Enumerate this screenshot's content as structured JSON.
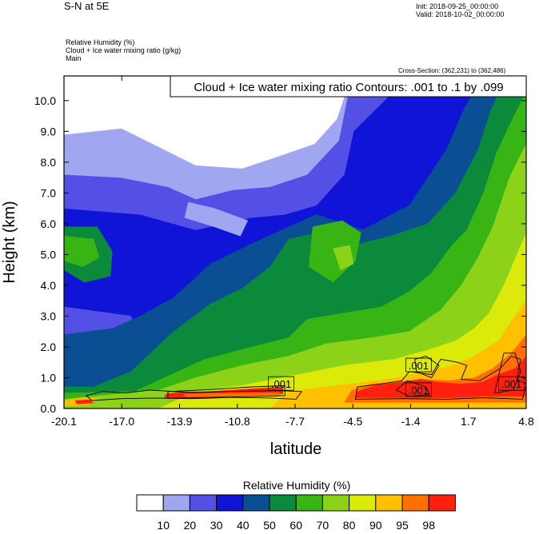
{
  "header": {
    "title": "S-N at 5E",
    "init": "Init: 2018-09-25_00:00:00",
    "valid": "Valid: 2018-10-02_00:00:00",
    "fields": [
      "Relative Humidity   (%)",
      "Cloud + Ice water mixing ratio   (g/kg)",
      "Main"
    ],
    "cross_section": "Cross-Section: (362,231) to (362,486)",
    "contour_info": "Cloud + Ice water mixing ratio Contours: .001 to .1 by .099"
  },
  "chart_data": {
    "type": "heatmap",
    "xlabel": "latitude",
    "ylabel": "Height (km)",
    "x_ticks": [
      "-20.1",
      "-17.0",
      "-13.9",
      "-10.8",
      "-7.7",
      "-4.5",
      "-1.4",
      "1.7",
      "4.8"
    ],
    "x_range": [
      -20.1,
      4.8
    ],
    "y_ticks": [
      "0.0",
      "1.0",
      "2.0",
      "3.0",
      "4.0",
      "5.0",
      "6.0",
      "7.0",
      "8.0",
      "9.0",
      "10.0"
    ],
    "y_range": [
      0,
      10.8
    ],
    "colorbar": {
      "title": "Relative Humidity  (%)",
      "labels": [
        "10",
        "20",
        "30",
        "40",
        "50",
        "60",
        "70",
        "80",
        "90",
        "95",
        "98"
      ],
      "colors": [
        "#ffffff",
        "#a0a6f0",
        "#5450e6",
        "#1014d6",
        "#0a4e94",
        "#0a8a3a",
        "#38b414",
        "#8cd218",
        "#dcea0a",
        "#ffc000",
        "#ff7000",
        "#ff2010"
      ]
    },
    "contour_labels": [
      {
        "text": ".001",
        "lat": -8.4,
        "h": 0.8
      },
      {
        "text": ".001",
        "lat": -1.0,
        "h": 1.4
      },
      {
        "text": ".001",
        "lat": -1.0,
        "h": 0.6
      },
      {
        "text": ".001",
        "lat": 4.0,
        "h": 0.8
      }
    ],
    "regions": [
      {
        "level": 3,
        "pts": [
          [
            -20.1,
            0
          ],
          [
            4.8,
            0
          ],
          [
            4.8,
            10.8
          ],
          [
            -20.1,
            10.8
          ]
        ]
      },
      {
        "level": 2,
        "pts": [
          [
            -20.1,
            6.5
          ],
          [
            -16,
            6.3
          ],
          [
            -13,
            5.8
          ],
          [
            -10,
            6.2
          ],
          [
            -8.2,
            6.3
          ],
          [
            -6.5,
            6.6
          ],
          [
            -5,
            7.6
          ],
          [
            -4.5,
            9
          ],
          [
            -2.5,
            10.2
          ],
          [
            -1,
            10.8
          ],
          [
            -20.1,
            10.8
          ]
        ]
      },
      {
        "level": 2,
        "pts": [
          [
            -20.1,
            2.4
          ],
          [
            -18,
            1.6
          ],
          [
            -16.5,
            1.3
          ],
          [
            -15.5,
            1.7
          ],
          [
            -16.5,
            3.0
          ],
          [
            -20.1,
            3.3
          ]
        ]
      },
      {
        "level": 1,
        "pts": [
          [
            -20.1,
            7.6
          ],
          [
            -17,
            7.5
          ],
          [
            -14.5,
            7.2
          ],
          [
            -13,
            6.8
          ],
          [
            -11,
            7.1
          ],
          [
            -9,
            7.2
          ],
          [
            -7,
            7.6
          ],
          [
            -5.3,
            8.7
          ],
          [
            -4.6,
            10.8
          ],
          [
            -20.1,
            10.8
          ]
        ]
      },
      {
        "level": 1,
        "pts": [
          [
            -13.6,
            6.2
          ],
          [
            -12,
            5.9
          ],
          [
            -10.6,
            5.6
          ],
          [
            -10.2,
            6.1
          ],
          [
            -12,
            6.5
          ],
          [
            -13.4,
            6.7
          ]
        ]
      },
      {
        "level": 0,
        "pts": [
          [
            -20.1,
            8.9
          ],
          [
            -17,
            9.1
          ],
          [
            -15,
            8.5
          ],
          [
            -13,
            7.9
          ],
          [
            -10.5,
            7.8
          ],
          [
            -8.5,
            8.2
          ],
          [
            -6.6,
            8.6
          ],
          [
            -5.4,
            9.4
          ],
          [
            -4.9,
            10.3
          ],
          [
            -5.6,
            10.8
          ],
          [
            -20.1,
            10.8
          ]
        ]
      },
      {
        "level": 4,
        "pts": [
          [
            -20.1,
            0
          ],
          [
            4.8,
            0
          ],
          [
            4.8,
            10.8
          ],
          [
            2.6,
            10.8
          ],
          [
            1.5,
            9.8
          ],
          [
            0.5,
            8.4
          ],
          [
            -1.5,
            6.6
          ],
          [
            -4,
            5.8
          ],
          [
            -6.5,
            6.3
          ],
          [
            -8,
            5.9
          ],
          [
            -10.5,
            5.2
          ],
          [
            -12.2,
            4.7
          ],
          [
            -14.2,
            3.6
          ],
          [
            -16,
            3.0
          ],
          [
            -17.5,
            2.6
          ],
          [
            -20.1,
            2.4
          ]
        ]
      },
      {
        "level": 5,
        "pts": [
          [
            -20.1,
            0
          ],
          [
            4.8,
            0
          ],
          [
            4.8,
            10.8
          ],
          [
            3.8,
            10.8
          ],
          [
            2.9,
            9.7
          ],
          [
            2.2,
            8.4
          ],
          [
            1.0,
            7.0
          ],
          [
            -0.5,
            6.0
          ],
          [
            -2.5,
            5.6
          ],
          [
            -4.5,
            5.3
          ],
          [
            -6.5,
            5.7
          ],
          [
            -8,
            5.5
          ],
          [
            -9,
            4.6
          ],
          [
            -10.5,
            3.9
          ],
          [
            -12.2,
            3.4
          ],
          [
            -14.2,
            2.5
          ],
          [
            -16.5,
            1.2
          ],
          [
            -18.5,
            0.7
          ],
          [
            -20.1,
            0.7
          ]
        ]
      },
      {
        "level": 5,
        "pts": [
          [
            -20.1,
            5.9
          ],
          [
            -18.3,
            5.9
          ],
          [
            -17.5,
            5.1
          ],
          [
            -17.6,
            4.3
          ],
          [
            -19,
            4.1
          ],
          [
            -20.1,
            4.5
          ]
        ]
      },
      {
        "level": 6,
        "pts": [
          [
            -20.1,
            5.6
          ],
          [
            -18.5,
            5.5
          ],
          [
            -18.2,
            4.9
          ],
          [
            -19.1,
            4.6
          ],
          [
            -20.1,
            4.8
          ]
        ]
      },
      {
        "level": 6,
        "pts": [
          [
            -20.1,
            0
          ],
          [
            4.8,
            0
          ],
          [
            4.8,
            10.3
          ],
          [
            3.9,
            9.2
          ],
          [
            3.2,
            8.3
          ],
          [
            2.5,
            7.0
          ],
          [
            1.6,
            5.8
          ],
          [
            0.8,
            5.3
          ],
          [
            -0.3,
            4.4
          ],
          [
            -1.5,
            3.8
          ],
          [
            -3,
            3.3
          ],
          [
            -5,
            3.1
          ],
          [
            -7,
            2.9
          ],
          [
            -8,
            2.3
          ],
          [
            -10,
            2.0
          ],
          [
            -12.5,
            1.6
          ],
          [
            -14.7,
            1.0
          ],
          [
            -16.3,
            0.55
          ],
          [
            -20.1,
            0.5
          ]
        ]
      },
      {
        "level": 6,
        "pts": [
          [
            -6.7,
            5.9
          ],
          [
            -5.1,
            6.1
          ],
          [
            -4.1,
            5.7
          ],
          [
            -4.4,
            4.8
          ],
          [
            -5.6,
            4.1
          ],
          [
            -6.9,
            4.6
          ]
        ]
      },
      {
        "level": 7,
        "pts": [
          [
            -20.1,
            0
          ],
          [
            4.8,
            0
          ],
          [
            4.8,
            8.6
          ],
          [
            3.9,
            7.5
          ],
          [
            3.0,
            5.9
          ],
          [
            2.2,
            4.9
          ],
          [
            1.3,
            4.0
          ],
          [
            0.2,
            3.2
          ],
          [
            -1.5,
            2.5
          ],
          [
            -3.5,
            2.3
          ],
          [
            -6,
            2.1
          ],
          [
            -8,
            1.7
          ],
          [
            -10.5,
            1.4
          ],
          [
            -13,
            1.0
          ],
          [
            -15,
            0.6
          ],
          [
            -20.1,
            0.3
          ]
        ]
      },
      {
        "level": 7,
        "pts": [
          [
            -5.6,
            5.2
          ],
          [
            -4.7,
            5.3
          ],
          [
            -4.5,
            4.7
          ],
          [
            -5.2,
            4.5
          ]
        ]
      },
      {
        "level": 8,
        "pts": [
          [
            -15,
            0
          ],
          [
            4.8,
            0
          ],
          [
            4.8,
            5.7
          ],
          [
            4.3,
            5.0
          ],
          [
            3.6,
            4.0
          ],
          [
            2.8,
            3.1
          ],
          [
            2.0,
            2.6
          ],
          [
            1.0,
            2.2
          ],
          [
            -0.5,
            1.9
          ],
          [
            -2.3,
            1.6
          ],
          [
            -5,
            1.4
          ],
          [
            -7.5,
            1.1
          ],
          [
            -10.5,
            0.75
          ],
          [
            -13,
            0.55
          ]
        ]
      },
      {
        "level": 9,
        "pts": [
          [
            -9,
            0
          ],
          [
            4.8,
            0
          ],
          [
            4.8,
            3.5
          ],
          [
            4.2,
            3.0
          ],
          [
            3.3,
            2.2
          ],
          [
            2.0,
            1.7
          ],
          [
            0.8,
            1.4
          ],
          [
            -0.5,
            1.2
          ],
          [
            -2.2,
            1.0
          ],
          [
            -4,
            0.85
          ],
          [
            -6,
            0.7
          ],
          [
            -8,
            0.55
          ]
        ]
      },
      {
        "level": 10,
        "pts": [
          [
            -5,
            0.2
          ],
          [
            4.8,
            0.2
          ],
          [
            4.8,
            2.4
          ],
          [
            4.0,
            1.8
          ],
          [
            3.0,
            1.3
          ],
          [
            2.0,
            1.0
          ],
          [
            0.6,
            0.9
          ],
          [
            -0.8,
            0.95
          ],
          [
            -2.2,
            0.85
          ],
          [
            -3.5,
            0.8
          ],
          [
            -4.6,
            0.6
          ]
        ]
      },
      {
        "level": 11,
        "pts": [
          [
            -4.4,
            0.35
          ],
          [
            -0.3,
            0.35
          ],
          [
            0.7,
            0.35
          ],
          [
            2.6,
            0.4
          ],
          [
            4.8,
            0.4
          ],
          [
            4.8,
            1.7
          ],
          [
            4.2,
            1.3
          ],
          [
            3.3,
            1.1
          ],
          [
            2.4,
            0.85
          ],
          [
            1.2,
            0.8
          ],
          [
            0.1,
            0.85
          ],
          [
            -0.9,
            0.95
          ],
          [
            -2.0,
            0.85
          ],
          [
            -3.3,
            0.75
          ],
          [
            -4.3,
            0.55
          ]
        ]
      },
      {
        "level": 9,
        "pts": [
          [
            -20.1,
            0.08
          ],
          [
            -18.8,
            0.12
          ],
          [
            -18.2,
            0.32
          ],
          [
            -19.1,
            0.35
          ],
          [
            -20.1,
            0.25
          ]
        ]
      },
      {
        "level": 11,
        "pts": [
          [
            -19.4,
            0.15
          ],
          [
            -18.5,
            0.18
          ],
          [
            -18.7,
            0.28
          ],
          [
            -19.5,
            0.26
          ]
        ]
      },
      {
        "level": 11,
        "pts": [
          [
            -14.7,
            0.35
          ],
          [
            -13.8,
            0.33
          ],
          [
            -12,
            0.38
          ],
          [
            -10,
            0.42
          ],
          [
            -8.3,
            0.48
          ],
          [
            -8.3,
            0.7
          ],
          [
            -10,
            0.64
          ],
          [
            -12,
            0.56
          ],
          [
            -13.9,
            0.52
          ],
          [
            -14.6,
            0.47
          ]
        ]
      },
      {
        "level": 10,
        "pts": [
          [
            -13.6,
            0.38
          ],
          [
            -8.5,
            0.42
          ],
          [
            -8.5,
            0.52
          ],
          [
            -13.6,
            0.47
          ]
        ]
      }
    ],
    "contours": [
      [
        [
          -18.9,
          0.42
        ],
        [
          -18,
          0.55
        ],
        [
          -16.8,
          0.5
        ],
        [
          -15.5,
          0.6
        ],
        [
          -13.2,
          0.52
        ],
        [
          -11,
          0.56
        ],
        [
          -8.5,
          0.58
        ],
        [
          -7.3,
          0.55
        ],
        [
          -7.6,
          0.3
        ],
        [
          -9,
          0.34
        ],
        [
          -11,
          0.36
        ],
        [
          -13.2,
          0.32
        ],
        [
          -15.3,
          0.34
        ],
        [
          -17,
          0.32
        ],
        [
          -18.6,
          0.26
        ]
      ],
      [
        [
          -14.5,
          0.33
        ],
        [
          -12,
          0.36
        ],
        [
          -9,
          0.4
        ],
        [
          -8.2,
          0.42
        ],
        [
          -8.2,
          0.74
        ],
        [
          -10,
          0.7
        ],
        [
          -12,
          0.62
        ],
        [
          -14.5,
          0.55
        ]
      ],
      [
        [
          -4.4,
          0.3
        ],
        [
          -4.3,
          0.7
        ],
        [
          -3,
          0.8
        ],
        [
          -1.9,
          0.9
        ],
        [
          -1.5,
          1.2
        ],
        [
          -0.3,
          1.1
        ],
        [
          0.2,
          1.6
        ],
        [
          1.1,
          1.5
        ],
        [
          1.6,
          1.4
        ],
        [
          1.3,
          0.95
        ],
        [
          2.3,
          0.9
        ],
        [
          3.4,
          1.3
        ],
        [
          4,
          1.7
        ],
        [
          4.5,
          1.6
        ],
        [
          4.3,
          0.95
        ],
        [
          4.8,
          0.8
        ],
        [
          4.6,
          0.3
        ],
        [
          2.5,
          0.35
        ],
        [
          0.5,
          0.3
        ],
        [
          -1.8,
          0.32
        ]
      ],
      [
        [
          -2.2,
          0.6
        ],
        [
          -1.6,
          0.9
        ],
        [
          -0.6,
          0.7
        ],
        [
          -0.4,
          0.45
        ],
        [
          -1.5,
          0.4
        ]
      ],
      [
        [
          3.1,
          0.5
        ],
        [
          3.6,
          1.8
        ],
        [
          4.2,
          1.8
        ],
        [
          4.5,
          1.2
        ],
        [
          4.1,
          0.6
        ]
      ],
      [
        [
          -1.2,
          1.6
        ],
        [
          -0.6,
          1.7
        ],
        [
          0.1,
          1.4
        ],
        [
          -0.3,
          1.0
        ],
        [
          -1.1,
          1.2
        ]
      ]
    ]
  }
}
